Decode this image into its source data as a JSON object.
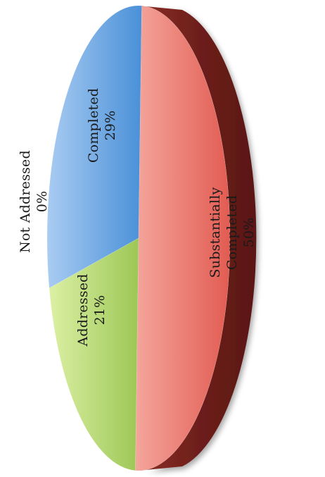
{
  "chart_data": {
    "type": "pie",
    "orientation": "rotated-90",
    "style": "3d",
    "slices": [
      {
        "label": "Not Addressed",
        "value": 0,
        "percent_label": "0%",
        "color": "#9ec2ea"
      },
      {
        "label": "Completed",
        "value": 29,
        "percent_label": "29%",
        "color": "#5a9bdc"
      },
      {
        "label": "Substantially Completed",
        "label_lines": [
          "Substantially",
          "Completed"
        ],
        "value": 50,
        "percent_label": "50%",
        "color": "#e8736a"
      },
      {
        "label": "Addressed",
        "value": 21,
        "percent_label": "21%",
        "color": "#b3d46a"
      }
    ],
    "side_color": "#7a231f",
    "legend": "none"
  }
}
